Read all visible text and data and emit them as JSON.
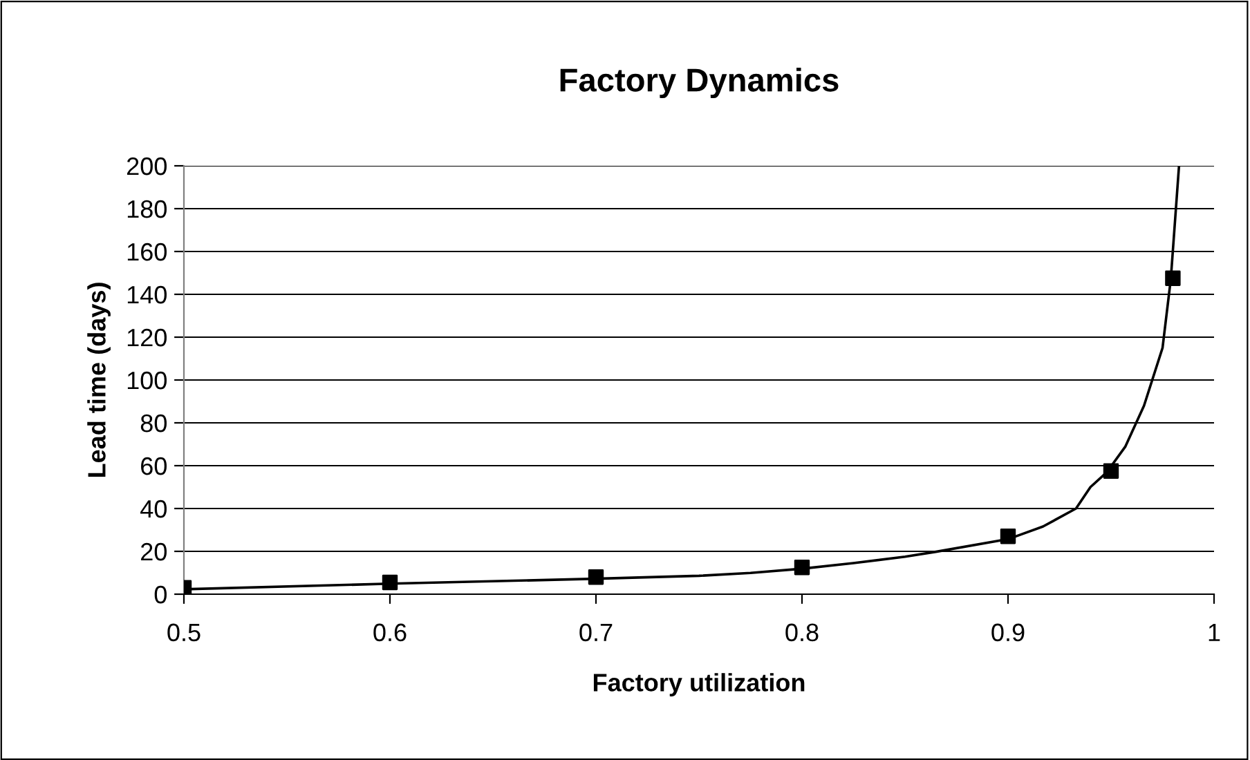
{
  "chart_data": {
    "type": "scatter",
    "title": "Factory Dynamics",
    "xlabel": "Factory utilization",
    "ylabel": "Lead time (days)",
    "series": [
      {
        "type": "line",
        "color": "#000000",
        "marker": "none",
        "x": [
          0.5,
          0.6,
          0.7,
          0.75,
          0.775,
          0.8,
          0.825,
          0.85,
          0.865,
          0.9,
          0.917,
          0.933,
          0.94,
          0.948,
          0.957,
          0.966,
          0.975,
          0.979,
          0.983
        ],
        "values": [
          2.3,
          4.9,
          7.2,
          8.6,
          9.9,
          11.9,
          14.5,
          17.5,
          19.8,
          25.7,
          31.6,
          40,
          50,
          57,
          69,
          88,
          115,
          147,
          200
        ]
      },
      {
        "color": "#000000",
        "marker": "square",
        "x": [
          0.5,
          0.6,
          0.7,
          0.8,
          0.9,
          0.95,
          0.98
        ],
        "values": [
          3,
          5.5,
          8,
          12.5,
          27,
          57.5,
          147.5
        ]
      }
    ],
    "xlim": [
      0.5,
      1
    ],
    "xticks": [
      0.5,
      0.6,
      0.7,
      0.8,
      0.9,
      1
    ],
    "ylim": [
      0,
      200
    ],
    "yticks": [
      0,
      20,
      40,
      60,
      80,
      100,
      120,
      140,
      160,
      180,
      200
    ],
    "grid": "y",
    "legend": false
  }
}
